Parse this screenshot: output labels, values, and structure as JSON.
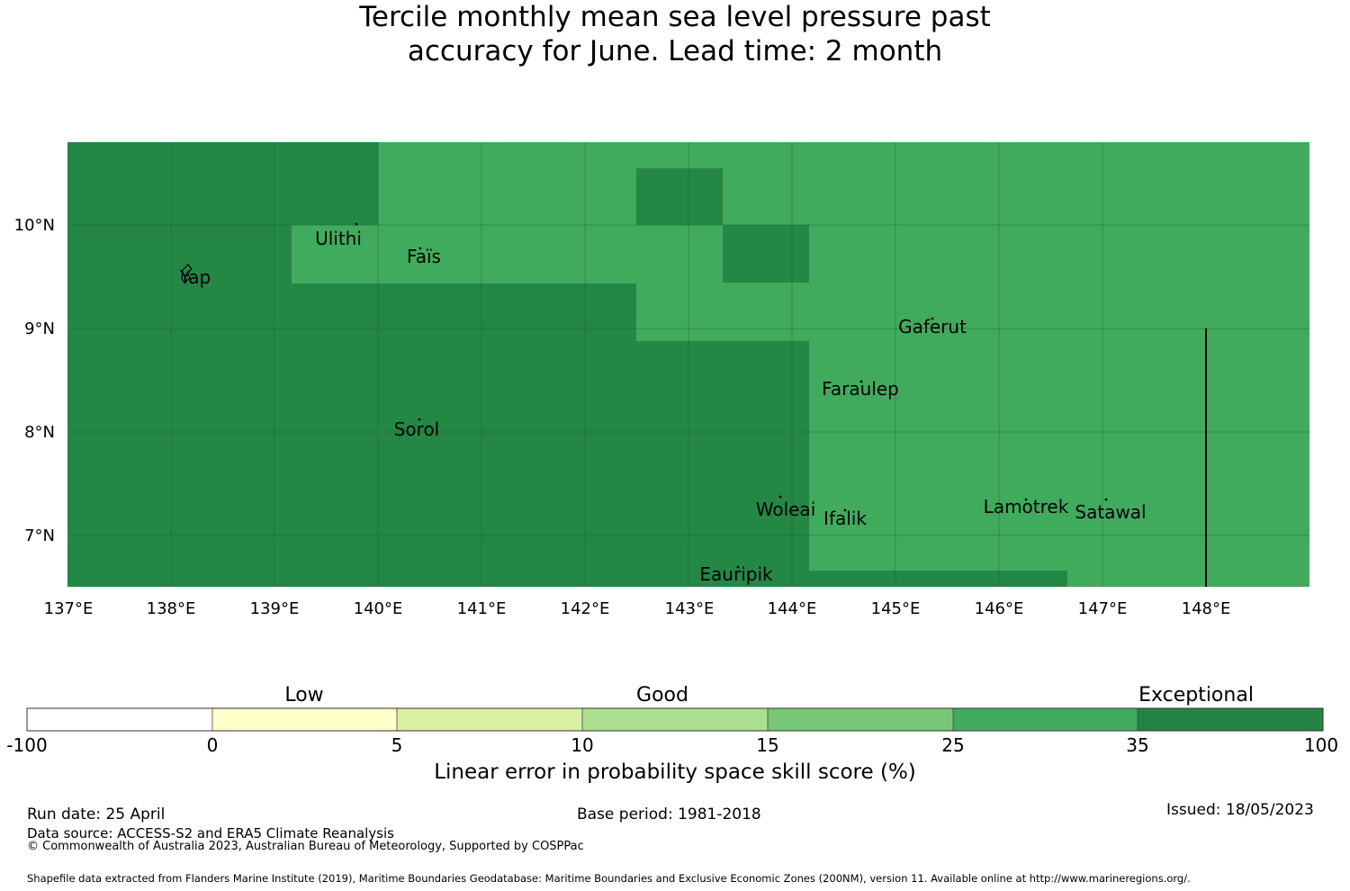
{
  "title": {
    "line1": "Tercile monthly mean sea level pressure past",
    "line2": "accuracy for June. Lead time: 2 month"
  },
  "map": {
    "lon_range": [
      137,
      149
    ],
    "lat_range": [
      6.5,
      10.8
    ],
    "x_ticks": [
      "137°E",
      "138°E",
      "139°E",
      "140°E",
      "141°E",
      "142°E",
      "143°E",
      "144°E",
      "145°E",
      "146°E",
      "147°E",
      "148°E"
    ],
    "y_ticks": [
      "10°N",
      "9°N",
      "8°N",
      "7°N"
    ],
    "colors": {
      "exceptional_dark": "#248746",
      "high": "#41ab5d"
    },
    "places": [
      {
        "name": "Yap",
        "lon": 138.1,
        "lat": 9.5
      },
      {
        "name": "Ulithi",
        "lon": 139.7,
        "lat": 9.9
      },
      {
        "name": "Faïs",
        "lon": 140.5,
        "lat": 9.7
      },
      {
        "name": "Gaferut",
        "lon": 145.4,
        "lat": 9.0
      },
      {
        "name": "Faraulep",
        "lon": 144.7,
        "lat": 8.4
      },
      {
        "name": "Sorol",
        "lon": 140.4,
        "lat": 8.0
      },
      {
        "name": "Woleai",
        "lon": 143.8,
        "lat": 7.25
      },
      {
        "name": "Ifalik",
        "lon": 144.5,
        "lat": 7.15
      },
      {
        "name": "Lamotrek",
        "lon": 146.25,
        "lat": 7.25
      },
      {
        "name": "Satawal",
        "lon": 147.1,
        "lat": 7.2
      },
      {
        "name": "Eauripik",
        "lon": 143.5,
        "lat": 6.6
      }
    ]
  },
  "colorbar": {
    "categories": [
      "Low",
      "Good",
      "Exceptional"
    ],
    "ticks": [
      "-100",
      "0",
      "5",
      "10",
      "15",
      "25",
      "35",
      "100"
    ],
    "colors": [
      "#ffffff",
      "#ffffcc",
      "#d9f0a3",
      "#addd8e",
      "#78c679",
      "#41ab5d",
      "#238443"
    ],
    "label": "Linear error in probability space skill score (%)"
  },
  "footer": {
    "run_date": "Run date: 25 April",
    "base_period": "Base period: 1981-2018",
    "issued": "Issued: 18/05/2023",
    "data_source": "Data source: ACCESS-S2 and ERA5 Climate Reanalysis",
    "copyright": "© Commonwealth of Australia 2023, Australian Bureau of Meteorology, Supported by COSPPac",
    "shapefile": "Shapefile data extracted from Flanders Marine Institute (2019), Maritime Boundaries Geodatabase: Maritime Boundaries and Exclusive Economic Zones (200NM), version 11. Available online at http://www.marineregions.org/."
  }
}
